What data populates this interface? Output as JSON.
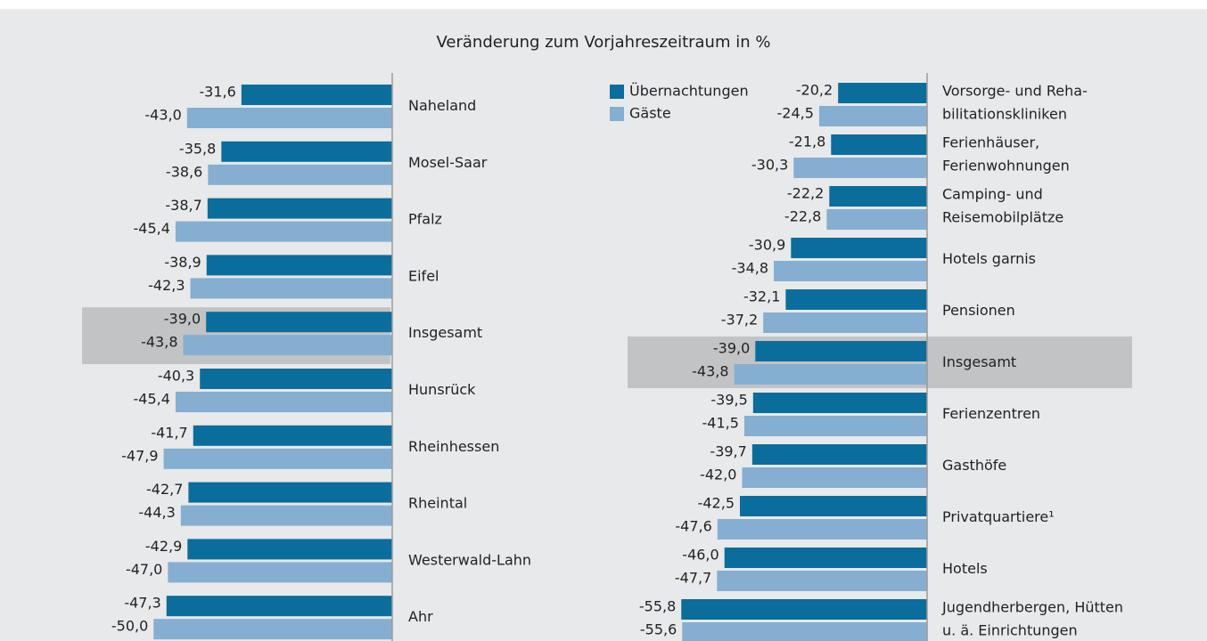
{
  "chart_data": [
    {
      "type": "bar",
      "orientation": "horizontal",
      "title": "Veränderung zum Vorjahreszeitraum in %",
      "categories": [
        "Naheland",
        "Mosel-Saar",
        "Pfalz",
        "Eifel",
        "Insgesamt",
        "Hunsrück",
        "Rheinhessen",
        "Rheintal",
        "Westerwald-Lahn",
        "Ahr"
      ],
      "highlight_index": 4,
      "xlim": [
        -65,
        0
      ],
      "series": [
        {
          "color": "#0b6d9b",
          "values": [
            -31.6,
            -35.8,
            -38.7,
            -38.9,
            -39.0,
            -40.3,
            -41.7,
            -42.7,
            -42.9,
            -47.3
          ],
          "value_labels": [
            "-31,6",
            "-35,8",
            "-38,7",
            "-38,9",
            "-39,0",
            "-40,3",
            "-41,7",
            "-42,7",
            "-42,9",
            "-47,3"
          ]
        },
        {
          "color": "#86aed1",
          "values": [
            -43.0,
            -38.6,
            -45.4,
            -42.3,
            -43.8,
            -45.4,
            -47.9,
            -44.3,
            -47.0,
            -50.0
          ],
          "value_labels": [
            "-43,0",
            "-38,6",
            "-45,4",
            "-42,3",
            "-43,8",
            "-45,4",
            "-47,9",
            "-44,3",
            "-47,0",
            "-50,0"
          ]
        }
      ]
    },
    {
      "type": "bar",
      "orientation": "horizontal",
      "categories": [
        [
          "Vorsorge- und Reha-",
          "bilitationskliniken"
        ],
        [
          "Ferienhäuser,",
          "Ferienwohnungen"
        ],
        [
          "Camping- und",
          "Reisemobilplätze"
        ],
        [
          "Hotels garnis"
        ],
        [
          "Pensionen"
        ],
        [
          "Insgesamt"
        ],
        [
          "Ferienzentren"
        ],
        [
          "Gasthöfe"
        ],
        [
          "Privatquartiere¹"
        ],
        [
          "Hotels"
        ],
        [
          "Jugendherbergen, Hütten",
          "u. ä. Einrichtungen"
        ]
      ],
      "highlight_index": 5,
      "xlim": [
        -68,
        0
      ],
      "legend": "top-left",
      "series": [
        {
          "name": "Übernachtungen",
          "color": "#0b6d9b",
          "values": [
            -20.2,
            -21.8,
            -22.2,
            -30.9,
            -32.1,
            -39.0,
            -39.5,
            -39.7,
            -42.5,
            -46.0,
            -55.8
          ],
          "value_labels": [
            "-20,2",
            "-21,8",
            "-22,2",
            "-30,9",
            "-32,1",
            "-39,0",
            "-39,5",
            "-39,7",
            "-42,5",
            "-46,0",
            "-55,8"
          ]
        },
        {
          "name": "Gäste",
          "color": "#86aed1",
          "values": [
            -24.5,
            -30.3,
            -22.8,
            -34.8,
            -37.2,
            -43.8,
            -41.5,
            -42.0,
            -47.6,
            -47.7,
            -55.6
          ],
          "value_labels": [
            "-24,5",
            "-30,3",
            "-22,8",
            "-34,8",
            "-37,2",
            "-43,8",
            "-41,5",
            "-42,0",
            "-47,6",
            "-47,7",
            "-55,6"
          ]
        }
      ]
    }
  ]
}
